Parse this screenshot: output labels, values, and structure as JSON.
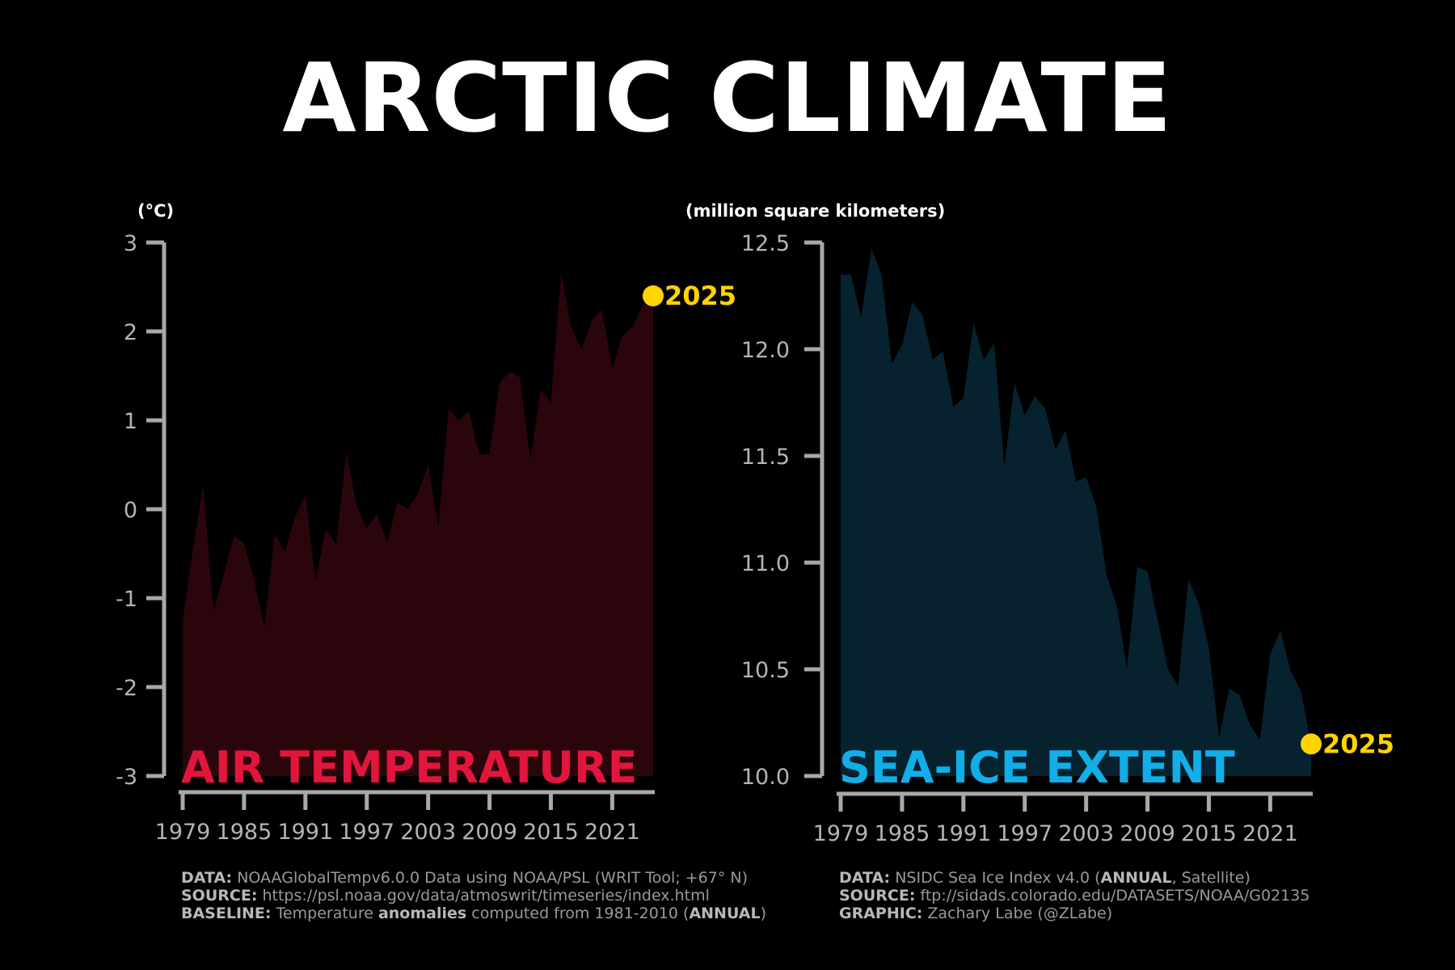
{
  "title": "ARCTIC CLIMATE",
  "colors": {
    "background": "#000000",
    "temp_fill": "#2b050c",
    "temp_label": "#e2163d",
    "ice_fill": "#06222e",
    "ice_label": "#11aee8",
    "highlight": "#ffd400",
    "axis": "#a8a8a8",
    "tick_text": "#b4b4b4"
  },
  "chart_data": [
    {
      "type": "area",
      "title": "AIR TEMPERATURE",
      "ylabel": "(°C)",
      "xlabel": "",
      "ylim": [
        -3,
        3
      ],
      "yticks": [
        "3",
        "2",
        "1",
        "0",
        "-1",
        "-2",
        "-3"
      ],
      "ytick_values": [
        3,
        2,
        1,
        0,
        -1,
        -2,
        -3
      ],
      "xlim": [
        1979,
        2025
      ],
      "xticks": [
        "1979",
        "1985",
        "1991",
        "1997",
        "2003",
        "2009",
        "2015",
        "2021"
      ],
      "highlight": {
        "label": "2025",
        "x": 2025,
        "y": 2.4
      },
      "x": [
        1979,
        1980,
        1981,
        1982,
        1983,
        1984,
        1985,
        1986,
        1987,
        1988,
        1989,
        1990,
        1991,
        1992,
        1993,
        1994,
        1995,
        1996,
        1997,
        1998,
        1999,
        2000,
        2001,
        2002,
        2003,
        2004,
        2005,
        2006,
        2007,
        2008,
        2009,
        2010,
        2011,
        2012,
        2013,
        2014,
        2015,
        2016,
        2017,
        2018,
        2019,
        2020,
        2021,
        2022,
        2023,
        2024,
        2025
      ],
      "values": [
        -1.25,
        -0.45,
        0.27,
        -1.15,
        -0.75,
        -0.3,
        -0.38,
        -0.8,
        -1.32,
        -0.28,
        -0.48,
        -0.08,
        0.15,
        -0.8,
        -0.22,
        -0.4,
        0.65,
        0.05,
        -0.22,
        -0.05,
        -0.38,
        0.08,
        0.0,
        0.18,
        0.5,
        -0.2,
        1.13,
        1.0,
        1.1,
        0.62,
        0.62,
        1.42,
        1.55,
        1.48,
        0.55,
        1.35,
        1.2,
        2.65,
        2.05,
        1.8,
        2.12,
        2.25,
        1.58,
        1.95,
        2.05,
        2.3,
        2.4
      ]
    },
    {
      "type": "area",
      "title": "SEA-ICE EXTENT",
      "ylabel": "(million square kilometers)",
      "xlabel": "",
      "ylim": [
        10.0,
        12.5
      ],
      "yticks": [
        "12.5",
        "12.0",
        "11.5",
        "11.0",
        "10.5",
        "10.0"
      ],
      "ytick_values": [
        12.5,
        12.0,
        11.5,
        11.0,
        10.5,
        10.0
      ],
      "xlim": [
        1979,
        2025
      ],
      "xticks": [
        "1979",
        "1985",
        "1991",
        "1997",
        "2003",
        "2009",
        "2015",
        "2021"
      ],
      "highlight": {
        "label": "2025",
        "x": 2025,
        "y": 10.15
      },
      "x": [
        1979,
        1980,
        1981,
        1982,
        1983,
        1984,
        1985,
        1986,
        1987,
        1988,
        1989,
        1990,
        1991,
        1992,
        1993,
        1994,
        1995,
        1996,
        1997,
        1998,
        1999,
        2000,
        2001,
        2002,
        2003,
        2004,
        2005,
        2006,
        2007,
        2008,
        2009,
        2010,
        2011,
        2012,
        2013,
        2014,
        2015,
        2016,
        2017,
        2018,
        2019,
        2020,
        2021,
        2022,
        2023,
        2024,
        2025
      ],
      "values": [
        12.35,
        12.35,
        12.15,
        12.47,
        12.35,
        11.93,
        12.02,
        12.22,
        12.16,
        11.95,
        11.99,
        11.73,
        11.77,
        12.12,
        11.95,
        12.03,
        11.45,
        11.84,
        11.69,
        11.78,
        11.72,
        11.53,
        11.62,
        11.38,
        11.4,
        11.26,
        10.94,
        10.8,
        10.5,
        10.98,
        10.96,
        10.73,
        10.5,
        10.42,
        10.92,
        10.81,
        10.6,
        10.18,
        10.41,
        10.38,
        10.24,
        10.17,
        10.57,
        10.68,
        10.49,
        10.4,
        10.15
      ]
    }
  ],
  "credits_left": [
    {
      "key": "DATA:",
      "text": " NOAAGlobalTempv6.0.0 Data using NOAA/PSL (WRIT Tool; +67° N)"
    },
    {
      "key": "SOURCE:",
      "text": " https://psl.noaa.gov/data/atmoswrit/timeseries/index.html"
    },
    {
      "key": "BASELINE:",
      "parts": [
        " Temperature ",
        "anomalies",
        " computed from 1981-2010 (",
        "ANNUAL",
        ")"
      ]
    }
  ],
  "credits_right": [
    {
      "key": "DATA:",
      "parts": [
        " NSIDC Sea Ice Index v4.0 (",
        "ANNUAL",
        ", Satellite)"
      ]
    },
    {
      "key": "SOURCE:",
      "text": " ftp://sidads.colorado.edu/DATASETS/NOAA/G02135"
    },
    {
      "key": "GRAPHIC:",
      "text": " Zachary Labe (@ZLabe)"
    }
  ]
}
